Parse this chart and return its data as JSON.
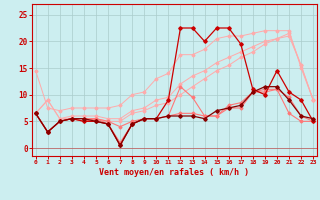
{
  "bg_color": "#cceef0",
  "grid_color": "#aacccc",
  "axis_color": "#cc0000",
  "xlabel": "Vent moyen/en rafales ( km/h )",
  "xlabel_color": "#cc0000",
  "xlabel_fontsize": 6,
  "xtick_labels": [
    "0",
    "1",
    "2",
    "3",
    "4",
    "5",
    "6",
    "7",
    "8",
    "9",
    "10",
    "11",
    "12",
    "13",
    "14",
    "15",
    "16",
    "17",
    "18",
    "19",
    "20",
    "21",
    "22",
    "23"
  ],
  "ytick_labels": [
    "0",
    "5",
    "10",
    "15",
    "20",
    "25"
  ],
  "ytick_values": [
    0,
    5,
    10,
    15,
    20,
    25
  ],
  "ylim": [
    -1.5,
    27
  ],
  "xlim": [
    -0.3,
    23.3
  ],
  "lines": [
    {
      "color": "#ffaaaa",
      "lw": 0.7,
      "marker": "D",
      "ms": 1.5,
      "data_x": [
        0,
        1,
        2,
        3,
        4,
        5,
        6,
        7,
        8,
        9,
        10,
        11,
        12,
        13,
        14,
        15,
        16,
        17,
        18,
        19,
        20,
        21,
        22,
        23
      ],
      "data_y": [
        14.5,
        7.5,
        7.0,
        7.5,
        7.5,
        7.5,
        7.5,
        8.0,
        10.0,
        10.5,
        13.0,
        14.0,
        17.5,
        17.5,
        18.5,
        20.5,
        21.0,
        21.0,
        21.5,
        22.0,
        22.0,
        22.0,
        15.0,
        9.0
      ]
    },
    {
      "color": "#ffaaaa",
      "lw": 0.7,
      "marker": "D",
      "ms": 1.5,
      "data_x": [
        0,
        1,
        2,
        3,
        4,
        5,
        6,
        7,
        8,
        9,
        10,
        11,
        12,
        13,
        14,
        15,
        16,
        17,
        18,
        19,
        20,
        21,
        22,
        23
      ],
      "data_y": [
        6.5,
        9.0,
        5.5,
        6.0,
        6.0,
        6.0,
        5.5,
        5.5,
        7.0,
        7.5,
        9.0,
        9.5,
        12.0,
        13.5,
        14.5,
        16.0,
        17.0,
        18.0,
        19.0,
        20.0,
        20.5,
        21.0,
        15.5,
        9.0
      ]
    },
    {
      "color": "#ffaaaa",
      "lw": 0.7,
      "marker": "D",
      "ms": 1.5,
      "data_x": [
        0,
        1,
        2,
        3,
        4,
        5,
        6,
        7,
        8,
        9,
        10,
        11,
        12,
        13,
        14,
        15,
        16,
        17,
        18,
        19,
        20,
        21,
        22,
        23
      ],
      "data_y": [
        6.5,
        9.0,
        5.5,
        5.5,
        5.5,
        5.5,
        5.0,
        5.0,
        6.5,
        7.0,
        8.0,
        8.5,
        10.0,
        11.5,
        13.0,
        14.5,
        15.5,
        17.0,
        18.0,
        19.5,
        20.5,
        21.5,
        15.5,
        9.0
      ]
    },
    {
      "color": "#ff7777",
      "lw": 0.8,
      "marker": "D",
      "ms": 1.5,
      "data_x": [
        0,
        1,
        2,
        3,
        4,
        5,
        6,
        7,
        8,
        9,
        10,
        11,
        12,
        13,
        14,
        15,
        16,
        17,
        18,
        19,
        20,
        21,
        22,
        23
      ],
      "data_y": [
        6.5,
        3.0,
        5.0,
        5.5,
        5.5,
        5.5,
        5.0,
        4.0,
        5.0,
        5.5,
        5.5,
        6.0,
        6.5,
        6.5,
        6.0,
        6.0,
        8.0,
        8.5,
        10.5,
        11.0,
        11.0,
        6.5,
        5.0,
        5.0
      ]
    },
    {
      "color": "#ff7777",
      "lw": 0.8,
      "marker": "D",
      "ms": 1.5,
      "data_x": [
        0,
        1,
        2,
        3,
        4,
        5,
        6,
        7,
        8,
        9,
        10,
        11,
        12,
        13,
        14,
        15,
        16,
        17,
        18,
        19,
        20,
        21,
        22,
        23
      ],
      "data_y": [
        6.5,
        3.0,
        5.0,
        5.5,
        5.0,
        5.5,
        4.5,
        1.0,
        4.5,
        5.5,
        5.5,
        6.0,
        11.5,
        9.5,
        6.0,
        6.0,
        7.5,
        7.5,
        10.5,
        10.5,
        11.0,
        9.5,
        6.0,
        5.0
      ]
    },
    {
      "color": "#cc0000",
      "lw": 0.9,
      "marker": "D",
      "ms": 1.8,
      "data_x": [
        0,
        1,
        2,
        3,
        4,
        5,
        6,
        7,
        8,
        9,
        10,
        11,
        12,
        13,
        14,
        15,
        16,
        17,
        18,
        19,
        20,
        21,
        22,
        23
      ],
      "data_y": [
        6.5,
        3.0,
        5.0,
        5.5,
        5.0,
        5.0,
        4.5,
        0.5,
        4.5,
        5.5,
        5.5,
        9.0,
        22.5,
        22.5,
        20.0,
        22.5,
        22.5,
        19.5,
        11.0,
        10.0,
        14.5,
        10.5,
        9.0,
        5.0
      ]
    },
    {
      "color": "#880000",
      "lw": 0.9,
      "marker": "D",
      "ms": 1.8,
      "data_x": [
        0,
        1,
        2,
        3,
        4,
        5,
        6,
        7,
        8,
        9,
        10,
        11,
        12,
        13,
        14,
        15,
        16,
        17,
        18,
        19,
        20,
        21,
        22,
        23
      ],
      "data_y": [
        6.5,
        3.0,
        5.0,
        5.5,
        5.5,
        5.0,
        4.5,
        0.5,
        4.5,
        5.5,
        5.5,
        6.0,
        6.0,
        6.0,
        5.5,
        7.0,
        7.5,
        8.0,
        10.5,
        11.5,
        11.5,
        9.0,
        6.0,
        5.5
      ]
    }
  ]
}
